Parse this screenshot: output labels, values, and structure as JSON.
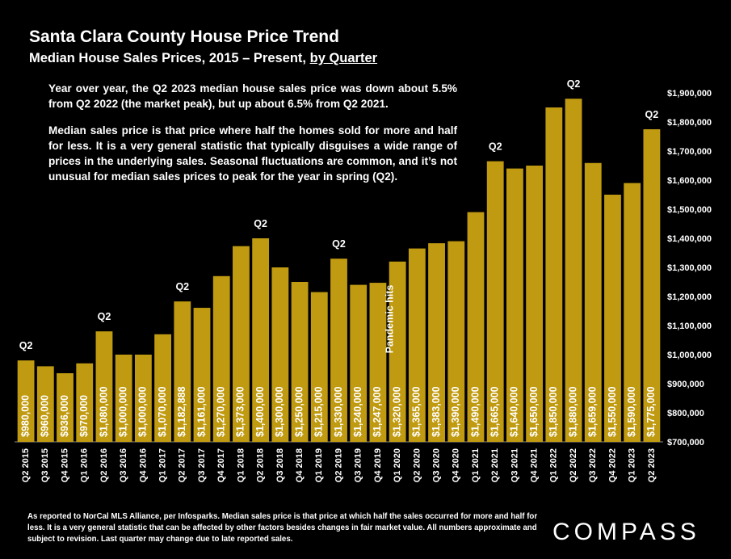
{
  "title": "Santa Clara County House Price Trend",
  "subtitle": "Median House Sales Prices, 2015 – Present,",
  "subtitle_link": "by Quarter",
  "note": {
    "paragraph1": "Year over year, the Q2 2023 median house sales price was down about 5.5% from Q2 2022 (the market peak), but up about 6.5% from Q2 2021.",
    "paragraph2": "Median sales price is that price where half the homes sold for more and half for less. It is a very general statistic that typically disguises a wide range of prices in the underlying sales. Seasonal fluctuations are common, and it’s not unusual for median sales prices to peak for the year in spring (Q2)."
  },
  "footer": "As reported to NorCal MLS Alliance, per Infosparks. Median sales price is that price at which half the sales occurred for more and half for less. It is a very general statistic that can be affected by other factors besides changes in fair market value. All numbers approximate and subject to revision. Last quarter may change due to late reported sales.",
  "logo": "COMPASS",
  "chart_data": {
    "type": "bar",
    "categories": [
      "Q2 2015",
      "Q3 2015",
      "Q4 2015",
      "Q1 2016",
      "Q2 2016",
      "Q3 2016",
      "Q4 2016",
      "Q1 2017",
      "Q2 2017",
      "Q3 2017",
      "Q4 2017",
      "Q1 2018",
      "Q2 2018",
      "Q3 2018",
      "Q4 2018",
      "Q1 2019",
      "Q2 2019",
      "Q3 2019",
      "Q4 2019",
      "Q1 2020",
      "Q2 2020",
      "Q3 2020",
      "Q4 2020",
      "Q1 2021",
      "Q2 2021",
      "Q3 2021",
      "Q4 2021",
      "Q1 2022",
      "Q2 2022",
      "Q3 2022",
      "Q4 2022",
      "Q1 2023",
      "Q2 2023"
    ],
    "values": [
      980000,
      960000,
      936000,
      970000,
      1080000,
      1000000,
      1000000,
      1070000,
      1182888,
      1161000,
      1270000,
      1373000,
      1400000,
      1300000,
      1250000,
      1215000,
      1330000,
      1240000,
      1247000,
      1320000,
      1365000,
      1383000,
      1390000,
      1490000,
      1665000,
      1640000,
      1650000,
      1850000,
      1880000,
      1659000,
      1550000,
      1590000,
      1775000
    ],
    "value_labels": [
      "$980,000",
      "$960,000",
      "$936,000",
      "$970,000",
      "$1,080,000",
      "$1,000,000",
      "$1,000,000",
      "$1,070,000",
      "$1,182,888",
      "$1,161,000",
      "$1,270,000",
      "$1,373,000",
      "$1,400,000",
      "$1,300,000",
      "$1,250,000",
      "$1,215,000",
      "$1,330,000",
      "$1,240,000",
      "$1,247,000",
      "$1,320,000",
      "$1,365,000",
      "$1,383,000",
      "$1,390,000",
      "$1,490,000",
      "$1,665,000",
      "$1,640,000",
      "$1,650,000",
      "$1,850,000",
      "$1,880,000",
      "$1,659,000",
      "$1,550,000",
      "$1,590,000",
      "$1,775,000"
    ],
    "ylim": [
      700000,
      1900000
    ],
    "y_ticks": [
      "$700,000",
      "$800,000",
      "$900,000",
      "$1,000,000",
      "$1,100,000",
      "$1,200,000",
      "$1,300,000",
      "$1,400,000",
      "$1,500,000",
      "$1,600,000",
      "$1,700,000",
      "$1,800,000",
      "$1,900,000"
    ],
    "y_axis_position": "right",
    "grid": false,
    "bar_color": "#C09A10",
    "top_markers": [
      {
        "index": 0,
        "text": "Q2"
      },
      {
        "index": 4,
        "text": "Q2"
      },
      {
        "index": 8,
        "text": "Q2"
      },
      {
        "index": 12,
        "text": "Q2"
      },
      {
        "index": 16,
        "text": "Q2"
      },
      {
        "index": 24,
        "text": "Q2"
      },
      {
        "index": 28,
        "text": "Q2"
      },
      {
        "index": 32,
        "text": "Q2"
      }
    ],
    "annotation": {
      "index": 19,
      "text": "Pandemic hits"
    }
  }
}
